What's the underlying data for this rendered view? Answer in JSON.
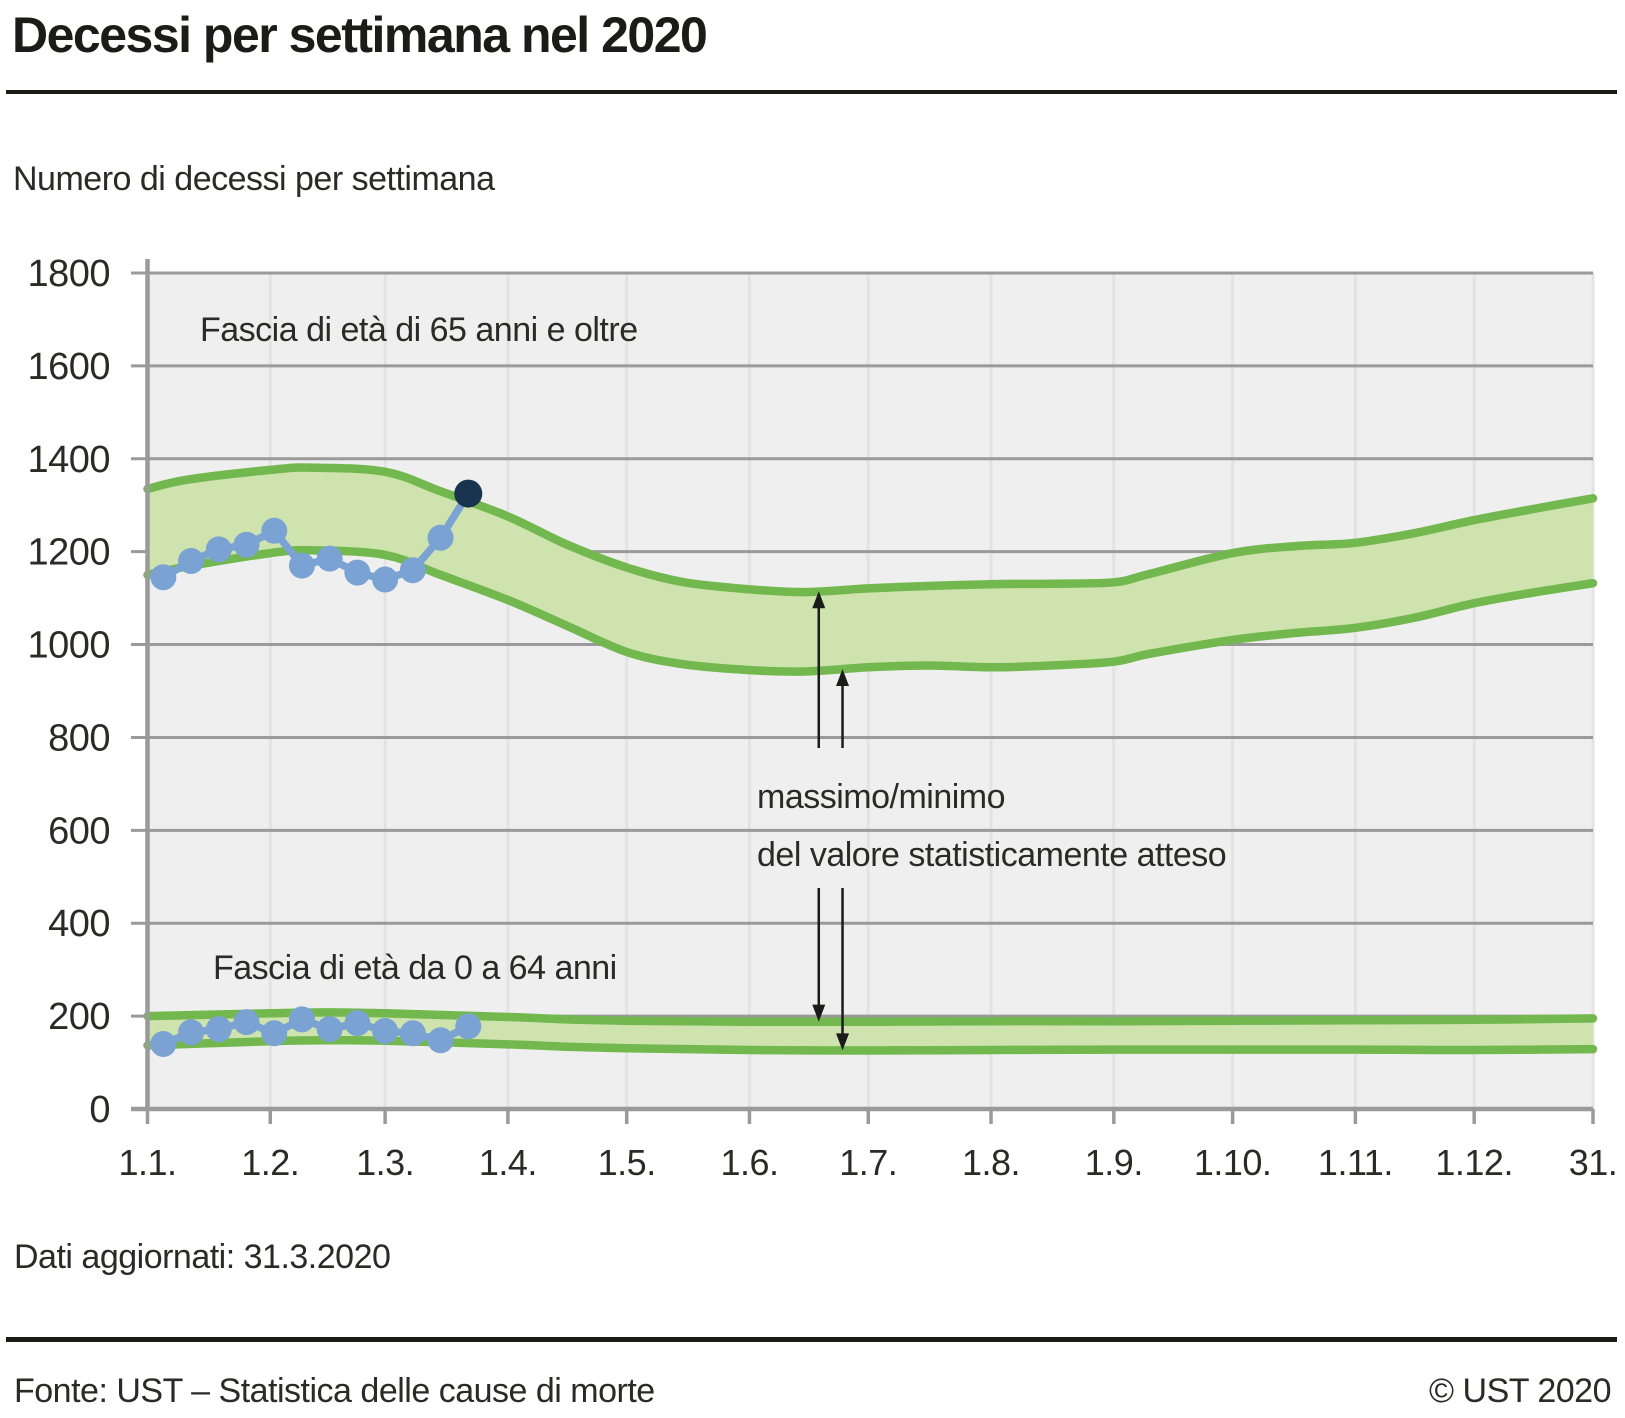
{
  "header": {
    "title": "Decessi per settimana nel 2020",
    "subtitle": "Numero di decessi per settimana"
  },
  "note": "Dati aggiornati: 31.3.2020",
  "footer": {
    "source": "Fonte: UST – Statistica delle cause di morte",
    "copyright": "© UST 2020"
  },
  "colors": {
    "band_fill": "#cee3ad",
    "band_stroke": "#72b84e",
    "observed_line": "#7aa3d4",
    "latest_point": "#17334d",
    "plot_background": "#efefef",
    "grid_horizontal": "#9a9a9a",
    "grid_vertical": "#e3e3e3",
    "axis": "#9a9a9a",
    "text": "#2a2a28",
    "arrow": "#1b1b19"
  },
  "chart_data": {
    "type": "area",
    "title": "Decessi per settimana nel 2020",
    "ylabel": "Numero di decessi per settimana",
    "ylim": [
      0,
      1800
    ],
    "grid": true,
    "y_axis": {
      "ticks": [
        0,
        200,
        400,
        600,
        800,
        1000,
        1200,
        1400,
        1600,
        1800
      ]
    },
    "x_axis": {
      "tick_labels": [
        "1.1.",
        "1.2.",
        "1.3.",
        "1.4.",
        "1.5.",
        "1.6.",
        "1.7.",
        "1.8.",
        "1.9.",
        "1.10.",
        "1.11.",
        "1.12.",
        "31."
      ],
      "tick_days": [
        0,
        31,
        60,
        91,
        121,
        152,
        182,
        213,
        244,
        274,
        305,
        335,
        365
      ],
      "days_in_year": 365
    },
    "labels": {
      "band_65plus": "Fascia di età di 65 anni e oltre",
      "band_0to64": "Fascia di età da 0 a 64 anni"
    },
    "annotation": {
      "line1": "massimo/minimo",
      "line2": "del valore statisticamente atteso"
    },
    "series": [
      {
        "name": "observed_65plus",
        "x_days": [
          4,
          11,
          18,
          25,
          32,
          39,
          46,
          53,
          60,
          67,
          74,
          81
        ],
        "values": [
          1145,
          1180,
          1205,
          1215,
          1245,
          1170,
          1185,
          1155,
          1140,
          1160,
          1230,
          1325
        ],
        "last_point_highlighted": true
      },
      {
        "name": "observed_0to64",
        "x_days": [
          4,
          11,
          18,
          25,
          32,
          39,
          46,
          53,
          60,
          67,
          74,
          81
        ],
        "values": [
          140,
          165,
          172,
          187,
          163,
          193,
          172,
          185,
          168,
          163,
          148,
          178
        ],
        "last_point_highlighted": false
      }
    ],
    "bands": [
      {
        "name": "expected_65plus",
        "upper": {
          "days": [
            0,
            10,
            31,
            41,
            60,
            74,
            91,
            106,
            121,
            135,
            152,
            166,
            182,
            197,
            213,
            228,
            244,
            253,
            274,
            290,
            305,
            320,
            335,
            350,
            365
          ],
          "values": [
            1335,
            1355,
            1376,
            1381,
            1372,
            1330,
            1276,
            1215,
            1166,
            1135,
            1119,
            1113,
            1121,
            1126,
            1130,
            1131,
            1134,
            1152,
            1197,
            1212,
            1219,
            1240,
            1268,
            1292,
            1315
          ]
        },
        "lower": {
          "days": [
            0,
            10,
            31,
            41,
            60,
            74,
            91,
            106,
            121,
            135,
            152,
            166,
            182,
            197,
            213,
            228,
            244,
            253,
            274,
            290,
            305,
            320,
            335,
            350,
            365
          ],
          "values": [
            1150,
            1168,
            1197,
            1203,
            1193,
            1150,
            1096,
            1040,
            984,
            958,
            945,
            942,
            951,
            955,
            951,
            955,
            963,
            980,
            1010,
            1025,
            1036,
            1058,
            1089,
            1112,
            1132
          ]
        }
      },
      {
        "name": "expected_0to64",
        "upper": {
          "days": [
            0,
            31,
            45,
            60,
            91,
            106,
            121,
            152,
            182,
            213,
            244,
            274,
            305,
            335,
            365
          ],
          "values": [
            200,
            206,
            208,
            206,
            198,
            193,
            190,
            188,
            188,
            189,
            189,
            190,
            191,
            192,
            195
          ]
        },
        "lower": {
          "days": [
            0,
            31,
            45,
            60,
            91,
            106,
            121,
            152,
            182,
            213,
            244,
            274,
            305,
            335,
            365
          ],
          "values": [
            137,
            146,
            148,
            147,
            139,
            134,
            131,
            127,
            126,
            127,
            128,
            128,
            128,
            127,
            129
          ]
        }
      }
    ],
    "arrows": [
      {
        "day": 169.5,
        "from_band": 0,
        "from_edge": "upper",
        "to_band": 1,
        "to_edge": "upper"
      },
      {
        "day": 175.5,
        "from_band": 0,
        "from_edge": "lower",
        "to_band": 1,
        "to_edge": "lower"
      }
    ]
  }
}
